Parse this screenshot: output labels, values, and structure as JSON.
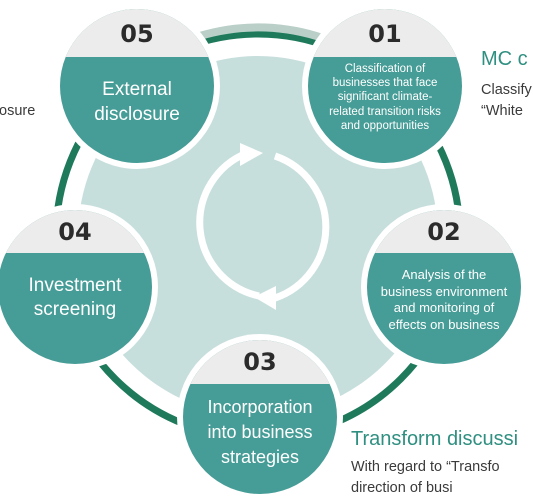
{
  "colors": {
    "ring_dark": "#1f7a5c",
    "ring_light": "#b9cfc8",
    "inner_fill": "#c7dfdc",
    "node_fill": "#469c96",
    "cap_fill": "#ececec",
    "heading": "#2f8f80"
  },
  "cycle": {
    "arrows_icon": "circular-arrows"
  },
  "steps": [
    {
      "number": "01",
      "label": "Classification of\nbusinesses that face\nsignificant climate-\nrelated transition risks\nand opportunities"
    },
    {
      "number": "02",
      "label": "Analysis of the\nbusiness environment\nand monitoring of\neffects on business"
    },
    {
      "number": "03",
      "label": "Incorporation\ninto business\nstrategies"
    },
    {
      "number": "04",
      "label": "Investment\nscreening"
    },
    {
      "number": "05",
      "label": "External\ndisclosure"
    }
  ],
  "side": {
    "left_fragment": "osure",
    "mc_heading": "MC c",
    "mc_line1": "Classify",
    "mc_line2": "“White",
    "transform_heading": "Transform discussi",
    "transform_line1": "With regard to “Transfo",
    "transform_line2": "direction of busi"
  }
}
